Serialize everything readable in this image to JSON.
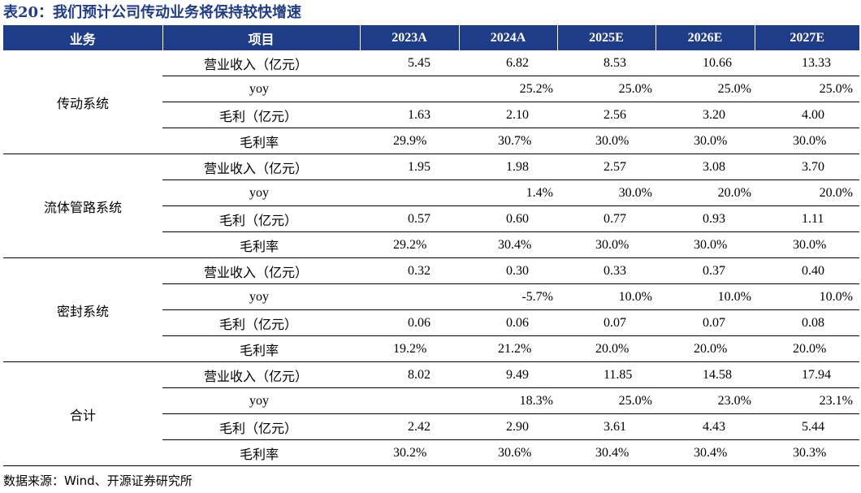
{
  "title": "表20：我们预计公司传动业务将保持较快增速",
  "header": {
    "business": "业务",
    "item": "项目",
    "years": [
      "2023A",
      "2024A",
      "2025E",
      "2026E",
      "2027E"
    ]
  },
  "sections": [
    {
      "business": "传动系统",
      "rows": [
        {
          "item": "营业收入（亿元）",
          "values": [
            "5.45",
            "6.82",
            "8.53",
            "10.66",
            "13.33"
          ]
        },
        {
          "item": "yoy",
          "values": [
            "",
            "25.2%",
            "25.0%",
            "25.0%",
            "25.0%"
          ]
        },
        {
          "item": "毛利（亿元）",
          "values": [
            "1.63",
            "2.10",
            "2.56",
            "3.20",
            "4.00"
          ]
        },
        {
          "item": "毛利率",
          "values": [
            "29.9%",
            "30.7%",
            "30.0%",
            "30.0%",
            "30.0%"
          ]
        }
      ]
    },
    {
      "business": "流体管路系统",
      "rows": [
        {
          "item": "营业收入（亿元）",
          "values": [
            "1.95",
            "1.98",
            "2.57",
            "3.08",
            "3.70"
          ]
        },
        {
          "item": "yoy",
          "values": [
            "",
            "1.4%",
            "30.0%",
            "20.0%",
            "20.0%"
          ]
        },
        {
          "item": "毛利（亿元）",
          "values": [
            "0.57",
            "0.60",
            "0.77",
            "0.93",
            "1.11"
          ]
        },
        {
          "item": "毛利率",
          "values": [
            "29.2%",
            "30.4%",
            "30.0%",
            "30.0%",
            "30.0%"
          ]
        }
      ]
    },
    {
      "business": "密封系统",
      "rows": [
        {
          "item": "营业收入（亿元）",
          "values": [
            "0.32",
            "0.30",
            "0.33",
            "0.37",
            "0.40"
          ]
        },
        {
          "item": "yoy",
          "values": [
            "",
            "-5.7%",
            "10.0%",
            "10.0%",
            "10.0%"
          ]
        },
        {
          "item": "毛利（亿元）",
          "values": [
            "0.06",
            "0.06",
            "0.07",
            "0.07",
            "0.08"
          ]
        },
        {
          "item": "毛利率",
          "values": [
            "19.2%",
            "21.2%",
            "20.0%",
            "20.0%",
            "20.0%"
          ]
        }
      ]
    },
    {
      "business": "合计",
      "rows": [
        {
          "item": "营业收入（亿元）",
          "values": [
            "8.02",
            "9.49",
            "11.85",
            "14.58",
            "17.94"
          ]
        },
        {
          "item": "yoy",
          "values": [
            "",
            "18.3%",
            "25.0%",
            "23.0%",
            "23.1%"
          ]
        },
        {
          "item": "毛利（亿元）",
          "values": [
            "2.42",
            "2.90",
            "3.61",
            "4.43",
            "5.44"
          ]
        },
        {
          "item": "毛利率",
          "values": [
            "30.2%",
            "30.6%",
            "30.4%",
            "30.4%",
            "30.3%"
          ]
        }
      ]
    }
  ],
  "source": "数据来源：Wind、开源证券研究所",
  "colors": {
    "header_bg": "#1f3c88",
    "title": "#1f3c88"
  }
}
